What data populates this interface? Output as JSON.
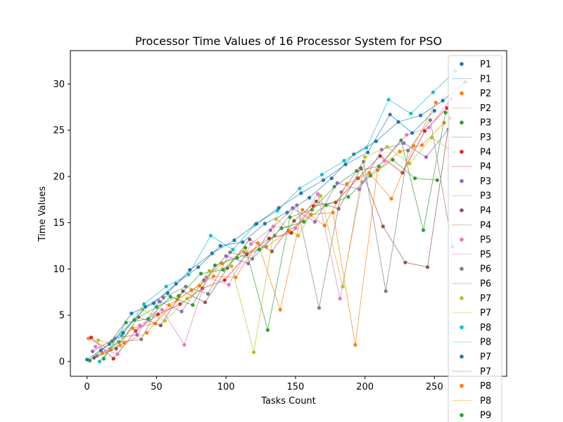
{
  "chart_data": {
    "type": "line",
    "title": "Processor Time Values of 16 Processor System for PSO",
    "xlabel": "Tasks Count",
    "ylabel": "Time Values",
    "xlim": [
      -12,
      302
    ],
    "ylim": [
      -1.6,
      33.6
    ],
    "xticks": [
      0,
      50,
      100,
      150,
      200,
      250
    ],
    "yticks": [
      0,
      5,
      10,
      15,
      20,
      25,
      30
    ],
    "grid": false,
    "legend_placement": "right, overflowing bottom",
    "markers": true,
    "x_pattern": "each processor sampled every 3 tasks, interleaved",
    "series": [
      {
        "name": "P1",
        "color": "#1f77b4",
        "x": [
          0,
          16,
          32,
          48,
          64,
          80,
          96,
          112,
          128,
          144,
          160,
          176,
          192,
          208,
          224,
          240,
          256,
          272
        ],
        "values": [
          0.2,
          1.9,
          5.2,
          6.3,
          8.4,
          10.2,
          12.5,
          12.9,
          14.9,
          16.1,
          17.7,
          19.8,
          22.4,
          23.8,
          25.9,
          26.6,
          28.2,
          30.2
        ]
      },
      {
        "name": "P1",
        "color": "#1f77b4",
        "line_only": true
      },
      {
        "name": "P2",
        "color": "#ff7f0e",
        "x": [
          1,
          17,
          33,
          49,
          65,
          81,
          97,
          113,
          129,
          145,
          161,
          177,
          193,
          209,
          225,
          241,
          257
        ],
        "values": [
          2.5,
          1.3,
          3.6,
          4.1,
          6.7,
          8.2,
          10.6,
          11.8,
          12.4,
          14.1,
          15.9,
          16.1,
          1.8,
          20.7,
          22.7,
          23.4,
          25.8
        ]
      },
      {
        "name": "P2",
        "color": "#ff7f0e",
        "line_only": true
      },
      {
        "name": "P3",
        "color": "#2ca02c",
        "x": [
          2,
          18,
          34,
          50,
          66,
          82,
          98,
          114,
          130,
          146,
          162,
          178,
          194,
          210,
          226,
          242,
          258
        ],
        "values": [
          0.1,
          2.2,
          4.5,
          5.9,
          7.1,
          9.5,
          9.9,
          12.3,
          3.4,
          15.6,
          16.4,
          18.9,
          20.6,
          21.1,
          23.9,
          14.2,
          26.9
        ]
      },
      {
        "name": "P3",
        "color": "#2ca02c",
        "line_only": true
      },
      {
        "name": "P4",
        "color": "#d62728",
        "x": [
          3,
          19,
          35,
          51,
          67,
          83,
          99,
          115,
          131,
          147,
          163,
          179,
          195,
          211,
          227,
          243,
          259
        ],
        "values": [
          2.6,
          0.3,
          3.3,
          5.1,
          6.2,
          7.9,
          8.8,
          11.6,
          13.3,
          13.9,
          16.8,
          17.2,
          19.8,
          22.2,
          20.4,
          24.9,
          27.4
        ]
      },
      {
        "name": "P4",
        "color": "#d62728",
        "line_only": true
      },
      {
        "name": "P3",
        "color": "#9467bd",
        "x": [
          4,
          20,
          36,
          52,
          68,
          84,
          100,
          116,
          132,
          148,
          164,
          180,
          196,
          212,
          228,
          244,
          260
        ],
        "values": [
          1.1,
          2.5,
          2.9,
          6.5,
          5.4,
          8.8,
          11.4,
          10.6,
          14.2,
          16.6,
          15.1,
          19.3,
          18.6,
          22.9,
          23.6,
          22.1,
          25.1
        ]
      },
      {
        "name": "P3",
        "color": "#9467bd",
        "line_only": true
      },
      {
        "name": "P4",
        "color": "#8c564b",
        "x": [
          5,
          21,
          37,
          53,
          69,
          85,
          101,
          117,
          133,
          149,
          165,
          181,
          197,
          213,
          229,
          245,
          261
        ],
        "values": [
          0.4,
          1.4,
          4.8,
          3.9,
          7.6,
          6.4,
          10.1,
          13.2,
          11.9,
          15.2,
          17.3,
          16.5,
          20.9,
          14.6,
          10.7,
          10.2,
          26.3
        ]
      },
      {
        "name": "P4",
        "color": "#8c564b",
        "line_only": true
      },
      {
        "name": "P5",
        "color": "#e377c2",
        "x": [
          6,
          22,
          38,
          54,
          70,
          86,
          102,
          118,
          134,
          150,
          166,
          182,
          198,
          214,
          230,
          246,
          262
        ],
        "values": [
          1.6,
          0.8,
          3.9,
          5.6,
          1.8,
          9.1,
          8.3,
          12.7,
          14.6,
          14.4,
          18.1,
          6.8,
          19.4,
          21.7,
          24.5,
          25.3,
          28.4
        ]
      },
      {
        "name": "P5",
        "color": "#e377c2",
        "line_only": true
      },
      {
        "name": "P6",
        "color": "#7f7f7f",
        "x": [
          7,
          23,
          39,
          55,
          71,
          87,
          103,
          119,
          135,
          151,
          167,
          183,
          199,
          215,
          231,
          247,
          263
        ],
        "values": [
          0.6,
          2.1,
          2.4,
          6.9,
          8.1,
          7.3,
          11.8,
          11.1,
          13.6,
          16.9,
          5.8,
          18.3,
          21.6,
          7.6,
          22.8,
          26.1,
          12.4
        ]
      },
      {
        "name": "P6",
        "color": "#7f7f7f",
        "line_only": true
      },
      {
        "name": "P7",
        "color": "#bcbd22",
        "x": [
          8,
          24,
          40,
          56,
          72,
          88,
          104,
          120,
          136,
          152,
          168,
          184,
          200,
          216,
          232,
          248,
          264
        ],
        "values": [
          2.3,
          1.7,
          5.6,
          4.4,
          6.8,
          9.8,
          10.3,
          1.0,
          15.4,
          13.6,
          17.9,
          8.1,
          22.1,
          23.2,
          21.4,
          24.2,
          22.6
        ]
      },
      {
        "name": "P7",
        "color": "#bcbd22",
        "line_only": true
      },
      {
        "name": "P8",
        "color": "#17becf",
        "x": [
          9,
          25,
          41,
          57,
          73,
          89,
          105,
          121,
          137,
          153,
          169,
          185,
          201,
          217,
          233,
          249,
          265
        ],
        "values": [
          0.0,
          2.8,
          6.2,
          8.1,
          9.4,
          13.6,
          12.1,
          14.8,
          16.3,
          18.7,
          20.2,
          21.7,
          23.1,
          28.3,
          26.8,
          29.1,
          31.4
        ]
      },
      {
        "name": "P8",
        "color": "#17becf",
        "line_only": true
      },
      {
        "name": "P7",
        "color": "#1f77b4",
        "x": [
          10,
          26,
          42,
          58,
          74,
          90,
          106,
          122,
          138,
          154,
          170,
          186,
          202,
          218,
          234,
          250
        ],
        "values": [
          1.2,
          3.1,
          5.9,
          7.4,
          9.9,
          11.7,
          13.1,
          14.9,
          16.6,
          18.2,
          19.6,
          21.3,
          22.6,
          26.7,
          24.7,
          27.1
        ]
      },
      {
        "name": "P7",
        "color": "#1f77b4",
        "line_only": true
      },
      {
        "name": "P8",
        "color": "#ff7f0e",
        "x": [
          11,
          27,
          43,
          59,
          75,
          91,
          107,
          123,
          139,
          155,
          171,
          187,
          203,
          219,
          235,
          251
        ],
        "values": [
          0.9,
          2.0,
          3.1,
          6.1,
          7.7,
          9.2,
          9.1,
          12.8,
          5.6,
          16.4,
          14.7,
          19.2,
          20.4,
          17.6,
          23.3,
          28.0
        ]
      },
      {
        "name": "P8",
        "color": "#ff7f0e",
        "line_only": true
      },
      {
        "name": "P9",
        "color": "#2ca02c",
        "x": [
          12,
          28,
          44,
          60,
          76,
          92,
          108,
          124,
          140,
          156,
          172,
          188,
          204,
          220,
          236,
          252
        ],
        "values": [
          0.3,
          4.2,
          4.6,
          7.0,
          6.1,
          10.4,
          11.2,
          12.1,
          14.4,
          15.1,
          16.9,
          17.8,
          20.1,
          21.8,
          19.8,
          19.6
        ]
      }
    ]
  }
}
